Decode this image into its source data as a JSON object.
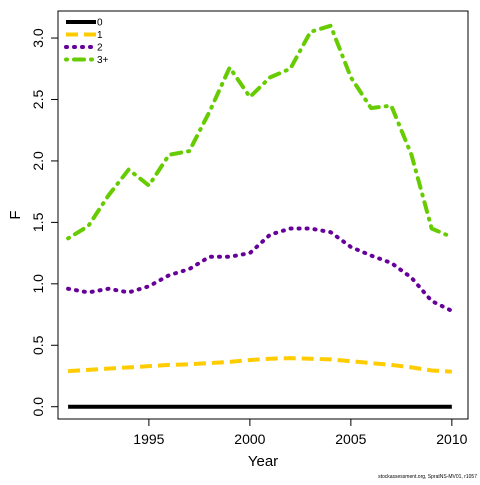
{
  "chart_data": {
    "type": "line",
    "title": "",
    "xlabel": "Year",
    "ylabel": "F",
    "xlim": [
      1990.5,
      2010.8
    ],
    "ylim": [
      -0.1,
      3.22
    ],
    "x_ticks": [
      1995,
      2000,
      2005,
      2010
    ],
    "x_tick_labels": [
      "1995",
      "2000",
      "2005",
      "2010"
    ],
    "y_ticks": [
      0.0,
      0.5,
      1.0,
      1.5,
      2.0,
      2.5,
      3.0
    ],
    "y_tick_labels": [
      "0.0",
      "0.5",
      "1.0",
      "1.5",
      "2.0",
      "2.5",
      "3.0"
    ],
    "grid": false,
    "legend_position": "top-left",
    "x": [
      1991,
      1992,
      1993,
      1994,
      1995,
      1996,
      1997,
      1998,
      1999,
      2000,
      2001,
      2002,
      2003,
      2004,
      2005,
      2006,
      2007,
      2008,
      2009,
      2010
    ],
    "series": [
      {
        "name": "0",
        "color": "#000000",
        "dash": "solid",
        "values": [
          0.0,
          0.0,
          0.0,
          0.0,
          0.0,
          0.0,
          0.0,
          0.0,
          0.0,
          0.0,
          0.0,
          0.0,
          0.0,
          0.0,
          0.0,
          0.0,
          0.0,
          0.0,
          0.0,
          0.0
        ]
      },
      {
        "name": "1",
        "color": "#FFCC00",
        "dash": "dashed",
        "values": [
          0.29,
          0.3,
          0.31,
          0.32,
          0.33,
          0.34,
          0.345,
          0.355,
          0.365,
          0.38,
          0.39,
          0.395,
          0.39,
          0.385,
          0.37,
          0.355,
          0.34,
          0.32,
          0.295,
          0.285
        ]
      },
      {
        "name": "2",
        "color": "#660099",
        "dash": "dotted",
        "values": [
          0.96,
          0.93,
          0.96,
          0.93,
          0.98,
          1.07,
          1.12,
          1.22,
          1.22,
          1.25,
          1.4,
          1.45,
          1.45,
          1.42,
          1.3,
          1.23,
          1.17,
          1.05,
          0.86,
          0.78
        ]
      },
      {
        "name": "3+",
        "color": "#66CC00",
        "dash": "dotdash",
        "values": [
          1.37,
          1.47,
          1.72,
          1.93,
          1.8,
          2.05,
          2.08,
          2.4,
          2.76,
          2.52,
          2.68,
          2.75,
          3.05,
          3.1,
          2.68,
          2.43,
          2.45,
          2.05,
          1.45,
          1.38
        ]
      }
    ]
  },
  "footer": {
    "credit": "stockassessment.org, SpratNS-MV01, r1057"
  }
}
